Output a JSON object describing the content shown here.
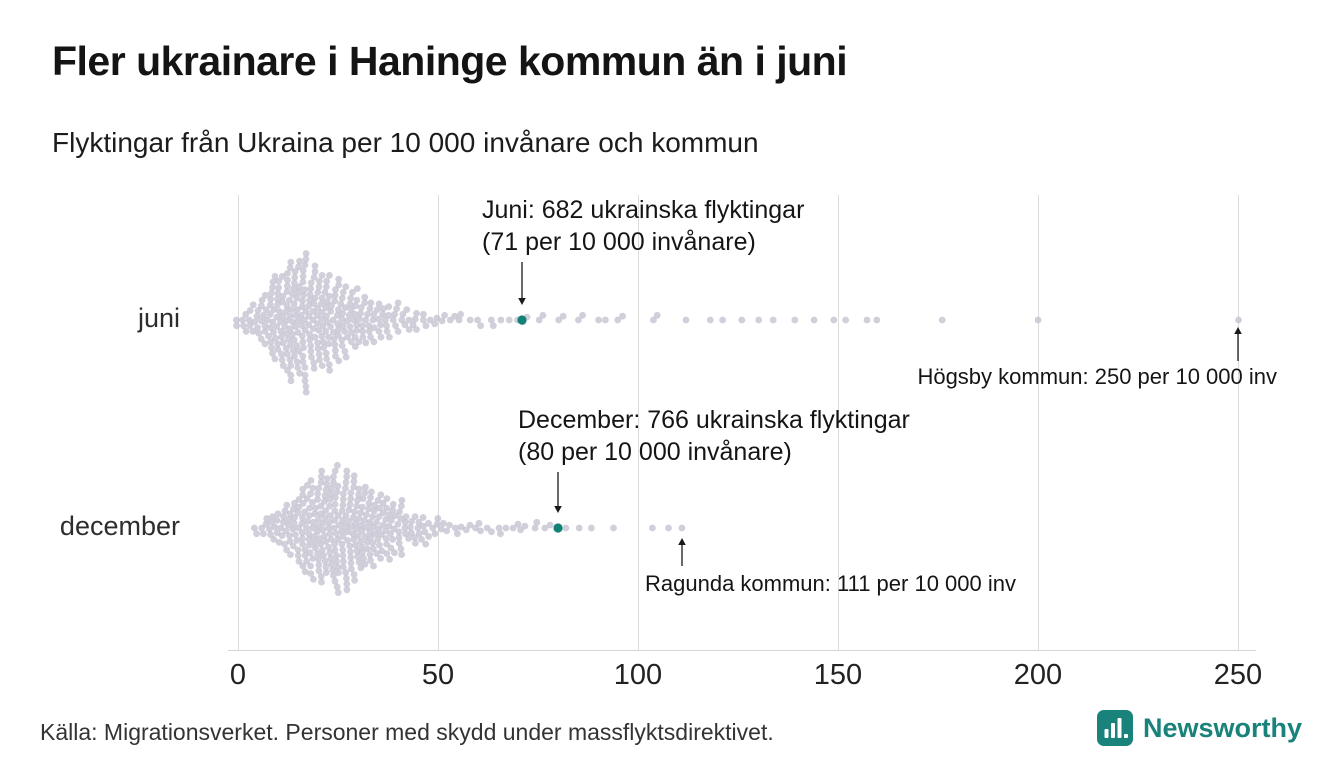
{
  "footer": {
    "source": "Källa: Migrationsverket. Personer med skydd under massflyktsdirektivet.",
    "brand": "Newsworthy"
  },
  "colors": {
    "dot": "#c3c1cf",
    "highlight": "#128277",
    "grid": "#dcdcdc",
    "brand": "#18827b"
  },
  "chart_data": {
    "type": "scatter",
    "variant": "beeswarm",
    "title": "Fler ukrainare i Haninge kommun än i juni",
    "subtitle": "Flyktingar från Ukraina per 10 000 invånare och kommun",
    "xlabel": "Flyktingar från Ukraina per 10 000 invånare",
    "x_ticks": [
      0,
      50,
      100,
      150,
      200,
      250
    ],
    "xlim": [
      0,
      255
    ],
    "grid": true,
    "rows": [
      {
        "label": "juni",
        "highlight": {
          "value": 71,
          "line1": "Juni: 682 ukrainska flyktingar",
          "line2": "(71 per 10 000 invånare)"
        },
        "outlier": {
          "value": 250,
          "label": "Högsby kommun: 250 per 10 000 inv"
        },
        "points_rle": [
          [
            0,
            2
          ],
          [
            1,
            2
          ],
          [
            2,
            2
          ],
          [
            3,
            3
          ],
          [
            4,
            3
          ],
          [
            5,
            4
          ],
          [
            6,
            5
          ],
          [
            7,
            6
          ],
          [
            8,
            8
          ],
          [
            9,
            9
          ],
          [
            10,
            10
          ],
          [
            11,
            11
          ],
          [
            12,
            12
          ],
          [
            13,
            12
          ],
          [
            14,
            13
          ],
          [
            15,
            13
          ],
          [
            16,
            13
          ],
          [
            17,
            12
          ],
          [
            18,
            12
          ],
          [
            19,
            11
          ],
          [
            20,
            11
          ],
          [
            21,
            10
          ],
          [
            22,
            10
          ],
          [
            23,
            9
          ],
          [
            24,
            9
          ],
          [
            25,
            8
          ],
          [
            26,
            8
          ],
          [
            27,
            7
          ],
          [
            28,
            7
          ],
          [
            29,
            6
          ],
          [
            30,
            6
          ],
          [
            31,
            5
          ],
          [
            32,
            5
          ],
          [
            33,
            5
          ],
          [
            34,
            4
          ],
          [
            35,
            4
          ],
          [
            36,
            4
          ],
          [
            37,
            3
          ],
          [
            38,
            3
          ],
          [
            39,
            3
          ],
          [
            40,
            3
          ],
          [
            41,
            2
          ],
          [
            42,
            2
          ],
          [
            43,
            2
          ],
          [
            44,
            2
          ],
          [
            45,
            2
          ],
          [
            46,
            2
          ],
          [
            47,
            1
          ],
          [
            48,
            1
          ],
          [
            49,
            1
          ],
          [
            50,
            1
          ],
          [
            51,
            1
          ],
          [
            52,
            1
          ],
          [
            53,
            1
          ],
          [
            54,
            1
          ],
          [
            55,
            1
          ],
          [
            56,
            1
          ],
          [
            58,
            1
          ],
          [
            60,
            1
          ],
          [
            61,
            1
          ],
          [
            63,
            1
          ],
          [
            64,
            1
          ],
          [
            66,
            1
          ],
          [
            68,
            1
          ],
          [
            70,
            1
          ],
          [
            71,
            1
          ],
          [
            72,
            1
          ],
          [
            75,
            1
          ],
          [
            76,
            1
          ],
          [
            80,
            1
          ],
          [
            81,
            1
          ],
          [
            85,
            1
          ],
          [
            86,
            1
          ],
          [
            90,
            1
          ],
          [
            92,
            1
          ],
          [
            95,
            1
          ],
          [
            96,
            1
          ],
          [
            104,
            1
          ],
          [
            105,
            1
          ],
          [
            112,
            1
          ],
          [
            118,
            1
          ],
          [
            121,
            1
          ],
          [
            126,
            1
          ],
          [
            130,
            1
          ],
          [
            134,
            1
          ],
          [
            139,
            1
          ],
          [
            144,
            1
          ],
          [
            149,
            1
          ],
          [
            152,
            1
          ],
          [
            157,
            1
          ],
          [
            160,
            1
          ],
          [
            176,
            1
          ],
          [
            200,
            1
          ],
          [
            250,
            1
          ]
        ]
      },
      {
        "label": "december",
        "highlight": {
          "value": 80,
          "line1": "December: 766 ukrainska flyktingar",
          "line2": "(80 per 10 000 invånare)"
        },
        "outlier": {
          "value": 111,
          "label": "Ragunda kommun: 111 per 10 000 inv"
        },
        "points_rle": [
          [
            4,
            1
          ],
          [
            5,
            1
          ],
          [
            6,
            2
          ],
          [
            7,
            2
          ],
          [
            8,
            3
          ],
          [
            9,
            3
          ],
          [
            10,
            4
          ],
          [
            11,
            4
          ],
          [
            12,
            5
          ],
          [
            13,
            6
          ],
          [
            14,
            7
          ],
          [
            15,
            8
          ],
          [
            16,
            9
          ],
          [
            17,
            9
          ],
          [
            18,
            10
          ],
          [
            19,
            11
          ],
          [
            20,
            11
          ],
          [
            21,
            12
          ],
          [
            22,
            12
          ],
          [
            23,
            13
          ],
          [
            24,
            13
          ],
          [
            25,
            13
          ],
          [
            26,
            12
          ],
          [
            27,
            12
          ],
          [
            28,
            11
          ],
          [
            29,
            11
          ],
          [
            30,
            10
          ],
          [
            31,
            10
          ],
          [
            32,
            9
          ],
          [
            33,
            9
          ],
          [
            34,
            8
          ],
          [
            35,
            8
          ],
          [
            36,
            7
          ],
          [
            37,
            7
          ],
          [
            38,
            6
          ],
          [
            39,
            6
          ],
          [
            40,
            5
          ],
          [
            41,
            5
          ],
          [
            42,
            4
          ],
          [
            43,
            4
          ],
          [
            44,
            3
          ],
          [
            45,
            3
          ],
          [
            46,
            3
          ],
          [
            47,
            2
          ],
          [
            48,
            2
          ],
          [
            49,
            2
          ],
          [
            50,
            2
          ],
          [
            51,
            2
          ],
          [
            52,
            1
          ],
          [
            53,
            1
          ],
          [
            54,
            1
          ],
          [
            55,
            1
          ],
          [
            56,
            1
          ],
          [
            57,
            1
          ],
          [
            58,
            1
          ],
          [
            59,
            1
          ],
          [
            60,
            1
          ],
          [
            61,
            1
          ],
          [
            62,
            1
          ],
          [
            63,
            1
          ],
          [
            65,
            1
          ],
          [
            66,
            1
          ],
          [
            67,
            1
          ],
          [
            69,
            1
          ],
          [
            70,
            1
          ],
          [
            71,
            1
          ],
          [
            72,
            1
          ],
          [
            74,
            1
          ],
          [
            75,
            1
          ],
          [
            77,
            1
          ],
          [
            78,
            1
          ],
          [
            80,
            1
          ],
          [
            82,
            1
          ],
          [
            85,
            1
          ],
          [
            88,
            1
          ],
          [
            94,
            1
          ],
          [
            104,
            1
          ],
          [
            108,
            1
          ],
          [
            111,
            1
          ]
        ]
      }
    ]
  }
}
